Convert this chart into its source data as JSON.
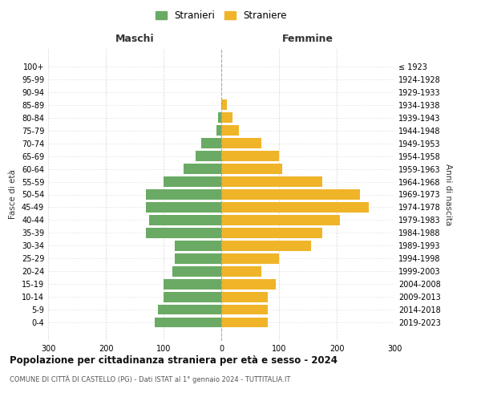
{
  "age_groups": [
    "0-4",
    "5-9",
    "10-14",
    "15-19",
    "20-24",
    "25-29",
    "30-34",
    "35-39",
    "40-44",
    "45-49",
    "50-54",
    "55-59",
    "60-64",
    "65-69",
    "70-74",
    "75-79",
    "80-84",
    "85-89",
    "90-94",
    "95-99",
    "100+"
  ],
  "birth_years": [
    "2019-2023",
    "2014-2018",
    "2009-2013",
    "2004-2008",
    "1999-2003",
    "1994-1998",
    "1989-1993",
    "1984-1988",
    "1979-1983",
    "1974-1978",
    "1969-1973",
    "1964-1968",
    "1959-1963",
    "1954-1958",
    "1949-1953",
    "1944-1948",
    "1939-1943",
    "1934-1938",
    "1929-1933",
    "1924-1928",
    "≤ 1923"
  ],
  "males": [
    115,
    110,
    100,
    100,
    85,
    80,
    80,
    130,
    125,
    130,
    130,
    100,
    65,
    45,
    35,
    8,
    5,
    0,
    0,
    0,
    0
  ],
  "females": [
    80,
    80,
    80,
    95,
    70,
    100,
    155,
    175,
    205,
    255,
    240,
    175,
    105,
    100,
    70,
    30,
    20,
    10,
    0,
    0,
    0
  ],
  "male_color": "#6aaa64",
  "female_color": "#f0b429",
  "grid_color": "#cccccc",
  "title": "Popolazione per cittadinanza straniera per età e sesso - 2024",
  "subtitle": "COMUNE DI CITTÀ DI CASTELLO (PG) - Dati ISTAT al 1° gennaio 2024 - TUTTITALIA.IT",
  "xlabel_left": "Maschi",
  "xlabel_right": "Femmine",
  "ylabel": "Fasce di età",
  "ylabel_right": "Anni di nascita",
  "legend_male": "Stranieri",
  "legend_female": "Straniere",
  "xlim": 300
}
